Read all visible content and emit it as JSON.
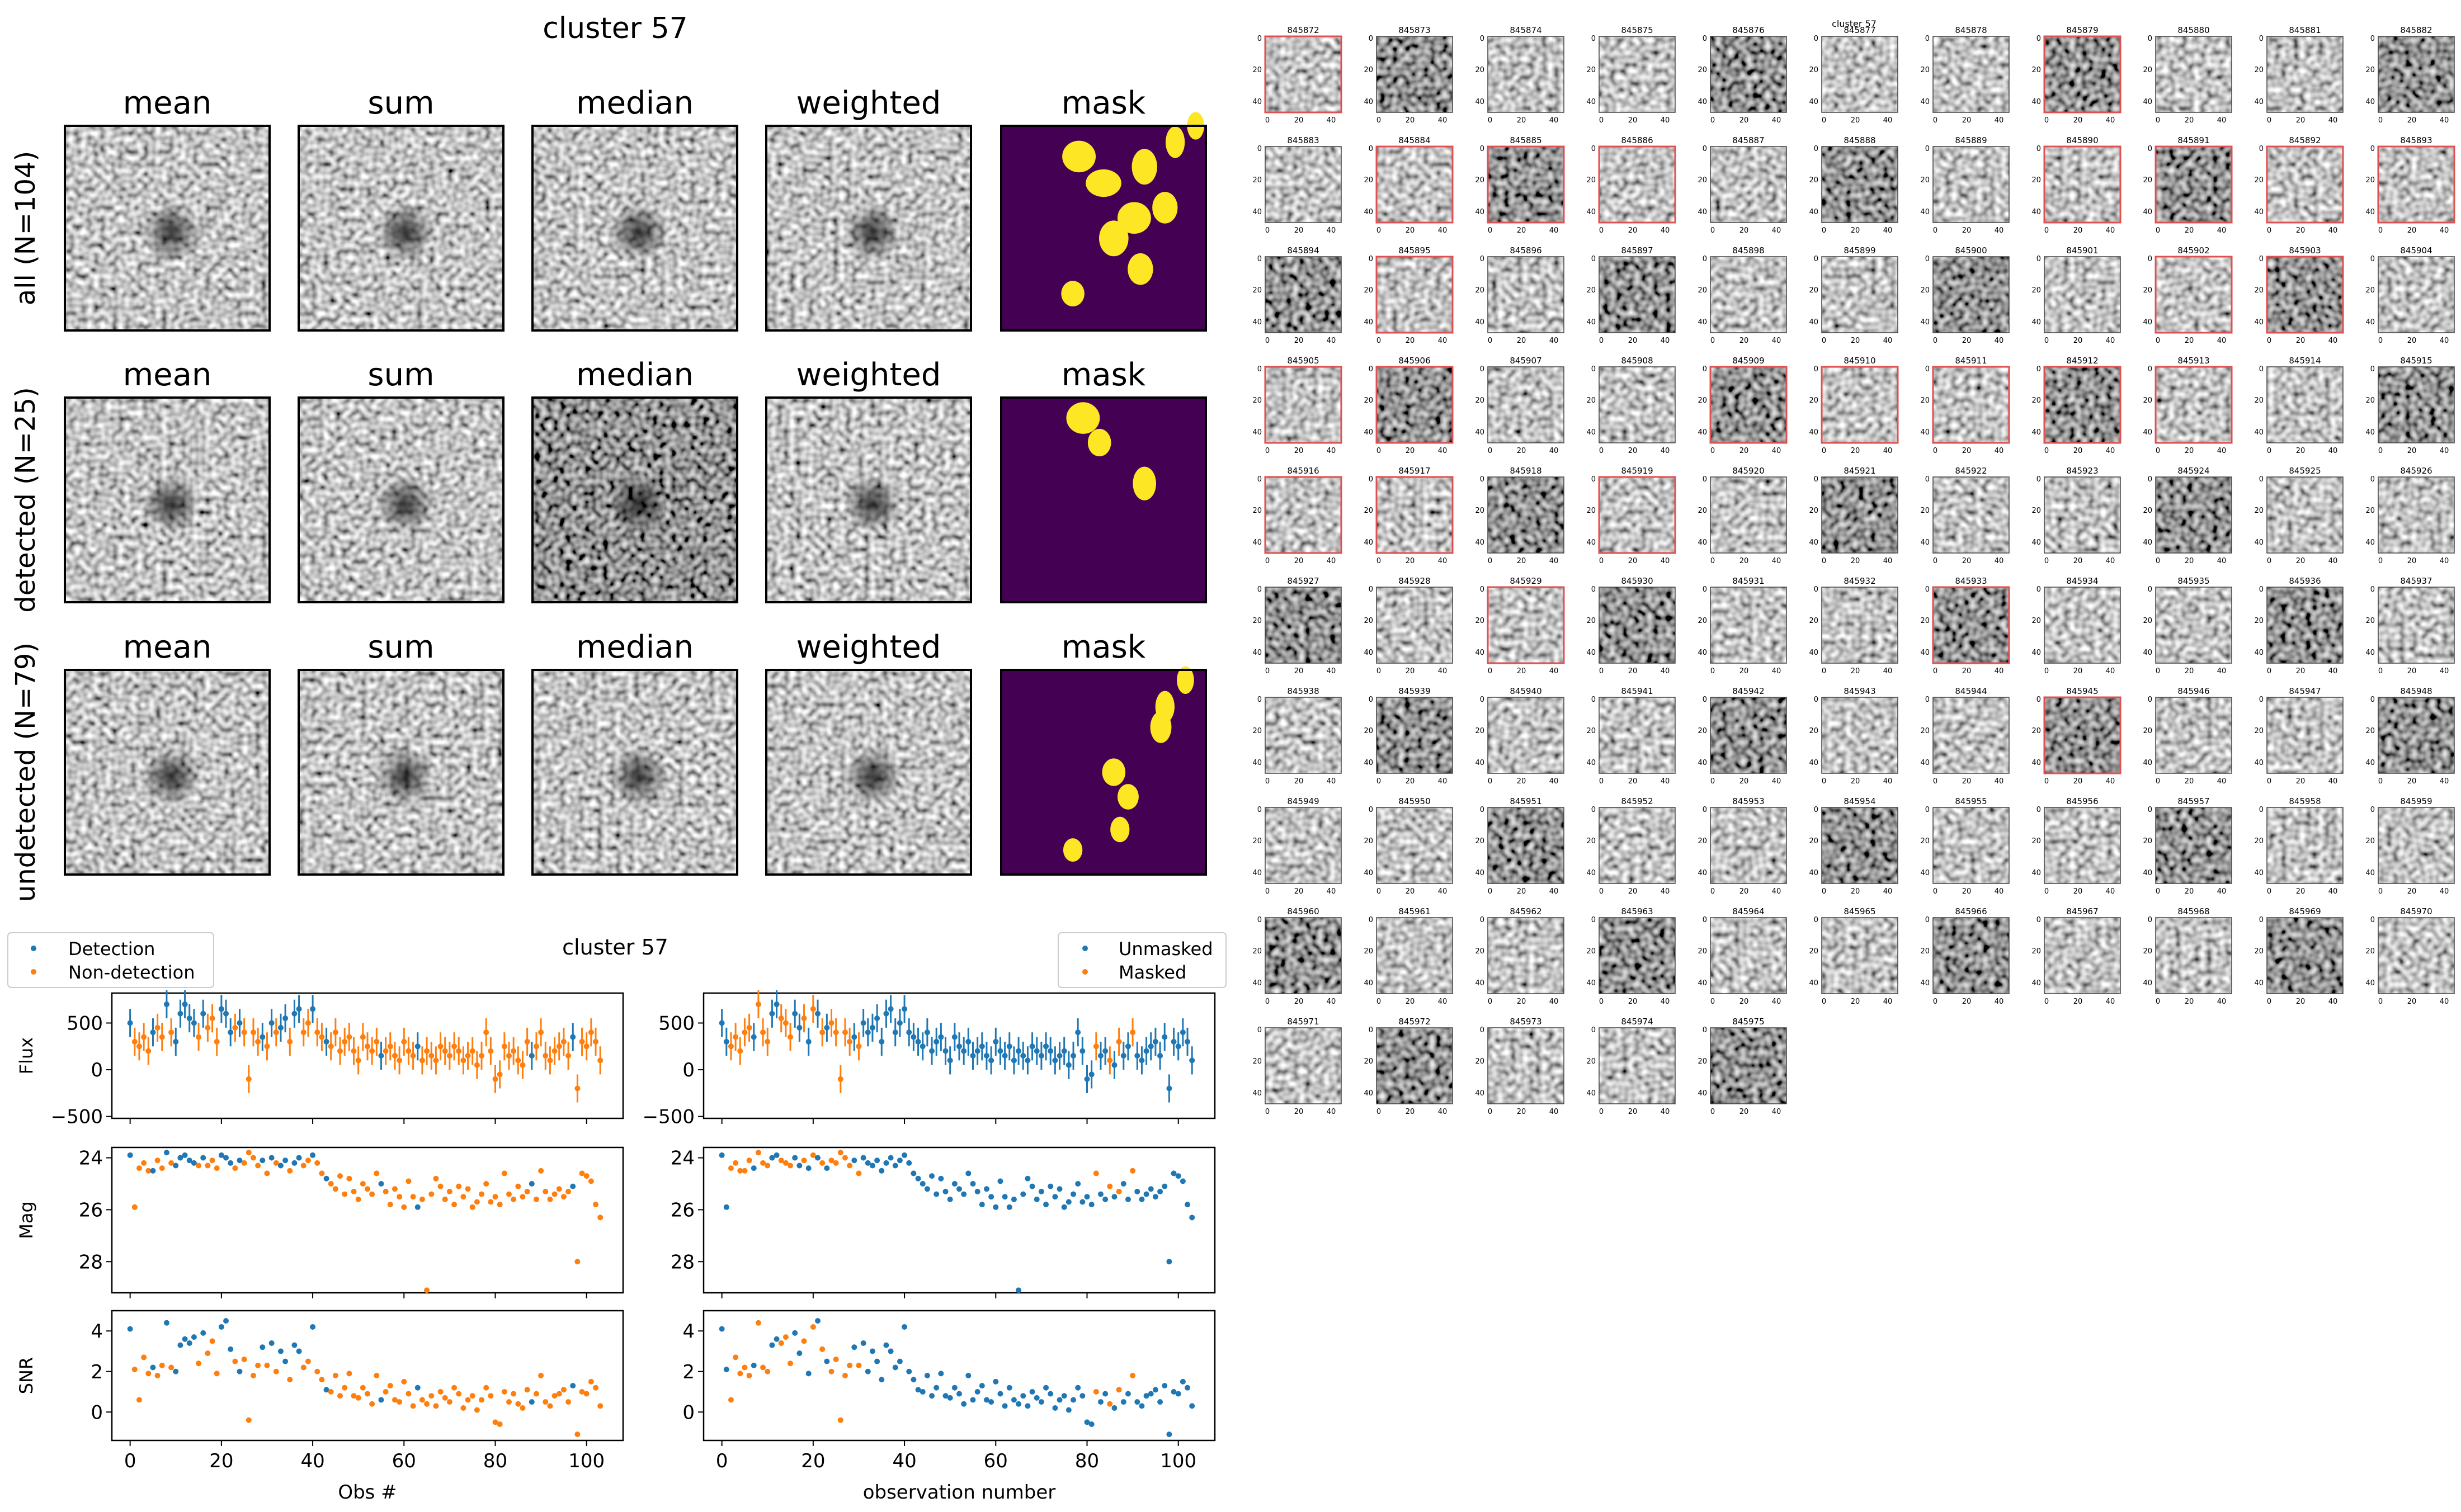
{
  "chart_data": [
    {
      "type": "heatmap",
      "title": "cluster 57",
      "columns": [
        "mean",
        "sum",
        "median",
        "weighted",
        "mask"
      ],
      "rows": [
        {
          "label": "all (N=104)",
          "mask_blobs": [
            [
              0.38,
              0.15,
              0.12,
              0.1
            ],
            [
              0.5,
              0.28,
              0.13,
              0.08
            ],
            [
              0.7,
              0.2,
              0.08,
              0.12
            ],
            [
              0.85,
              0.08,
              0.05,
              0.1
            ],
            [
              0.65,
              0.45,
              0.12,
              0.1
            ],
            [
              0.55,
              0.55,
              0.1,
              0.12
            ],
            [
              0.8,
              0.4,
              0.08,
              0.1
            ],
            [
              0.68,
              0.7,
              0.08,
              0.1
            ],
            [
              0.35,
              0.82,
              0.07,
              0.07
            ],
            [
              0.95,
              0.0,
              0.04,
              0.08
            ]
          ]
        },
        {
          "label": "detected (N=25)",
          "mask_blobs": [
            [
              0.4,
              0.1,
              0.12,
              0.1
            ],
            [
              0.48,
              0.22,
              0.07,
              0.08
            ],
            [
              0.7,
              0.42,
              0.07,
              0.11
            ]
          ]
        },
        {
          "label": "undetected (N=79)",
          "mask_blobs": [
            [
              0.8,
              0.18,
              0.05,
              0.1
            ],
            [
              0.78,
              0.28,
              0.06,
              0.1
            ],
            [
              0.55,
              0.5,
              0.07,
              0.08
            ],
            [
              0.62,
              0.62,
              0.06,
              0.07
            ],
            [
              0.58,
              0.78,
              0.05,
              0.07
            ],
            [
              0.35,
              0.88,
              0.05,
              0.06
            ],
            [
              0.9,
              0.05,
              0.04,
              0.08
            ]
          ]
        }
      ],
      "colors": {
        "mask_bg": "#440154",
        "mask_fg": "#fde725"
      }
    },
    {
      "type": "scatter",
      "title": "cluster 57",
      "left_legend": [
        "Detection",
        "Non-detection"
      ],
      "right_legend": [
        "Unmasked",
        "Masked"
      ],
      "panels": [
        {
          "ylabel": "Flux",
          "ylim": [
            -520,
            820
          ],
          "yticks": [
            "500",
            "0",
            "−500"
          ],
          "ytick_values": [
            500,
            0,
            -500
          ],
          "error_bars": true
        },
        {
          "ylabel": "Mag",
          "ylim": [
            29.2,
            23.6
          ],
          "yticks": [
            "24",
            "26",
            "28"
          ],
          "ytick_values": [
            24,
            26,
            28
          ],
          "error_bars": false
        },
        {
          "ylabel": "SNR",
          "ylim": [
            -1.4,
            5.0
          ],
          "yticks": [
            "4",
            "2",
            "0"
          ],
          "ytick_values": [
            4,
            2,
            0
          ],
          "error_bars": false
        }
      ],
      "xlim": [
        -4,
        108
      ],
      "xticks": [
        "0",
        "20",
        "40",
        "60",
        "80",
        "100"
      ],
      "xtick_values": [
        0,
        20,
        40,
        60,
        80,
        100
      ],
      "left_xlabel": "Obs #",
      "right_xlabel": "observation number",
      "colors": {
        "blue": "#1f77b4",
        "orange": "#ff7f0e"
      },
      "observations": {
        "flux": [
          500,
          300,
          250,
          350,
          200,
          400,
          450,
          350,
          700,
          400,
          300,
          600,
          700,
          550,
          500,
          350,
          600,
          450,
          550,
          300,
          650,
          600,
          400,
          450,
          500,
          400,
          -100,
          400,
          300,
          350,
          250,
          500,
          400,
          450,
          550,
          300,
          600,
          650,
          400,
          500,
          650,
          400,
          350,
          300,
          250,
          400,
          200,
          300,
          350,
          200,
          100,
          350,
          250,
          200,
          300,
          150,
          200,
          250,
          150,
          100,
          300,
          200,
          150,
          250,
          100,
          200,
          150,
          100,
          250,
          200,
          150,
          250,
          200,
          100,
          150,
          200,
          50,
          150,
          400,
          200,
          -100,
          -50,
          250,
          150,
          200,
          100,
          50,
          300,
          150,
          250,
          400,
          150,
          100,
          200,
          250,
          300,
          150,
          350,
          -200,
          300,
          250,
          400,
          300,
          100
        ],
        "flux_err": [
          150,
          150,
          150,
          150,
          150,
          150,
          150,
          150,
          150,
          150,
          150,
          150,
          150,
          150,
          150,
          150,
          150,
          150,
          150,
          150,
          150,
          150,
          150,
          150,
          150,
          150,
          150,
          150,
          150,
          150,
          150,
          150,
          150,
          150,
          150,
          150,
          150,
          150,
          150,
          150,
          150,
          150,
          150,
          150,
          150,
          150,
          150,
          150,
          150,
          150,
          150,
          150,
          150,
          150,
          150,
          150,
          150,
          150,
          150,
          150,
          150,
          150,
          150,
          150,
          150,
          150,
          150,
          150,
          150,
          150,
          150,
          150,
          150,
          150,
          150,
          150,
          150,
          150,
          150,
          150,
          150,
          150,
          150,
          150,
          150,
          150,
          150,
          150,
          150,
          150,
          150,
          150,
          150,
          150,
          150,
          150,
          150,
          150,
          150,
          150,
          150,
          150,
          150,
          150
        ],
        "mag": [
          23.9,
          25.9,
          24.4,
          24.2,
          24.5,
          24.5,
          24.1,
          24.4,
          23.8,
          24.2,
          24.3,
          24.0,
          23.9,
          24.1,
          24.2,
          24.3,
          24.0,
          24.3,
          24.1,
          24.4,
          23.9,
          24.0,
          24.2,
          24.4,
          24.1,
          24.2,
          23.8,
          24.0,
          24.3,
          24.1,
          24.6,
          24.0,
          24.2,
          24.3,
          24.1,
          24.5,
          24.2,
          24.0,
          24.3,
          24.1,
          23.9,
          24.2,
          24.6,
          24.8,
          25.0,
          25.2,
          24.7,
          25.4,
          24.8,
          25.3,
          25.6,
          25.0,
          25.2,
          25.4,
          24.6,
          25.0,
          25.3,
          25.8,
          25.2,
          25.5,
          25.9,
          24.9,
          25.5,
          25.9,
          25.6,
          29.1,
          25.4,
          24.8,
          25.1,
          25.6,
          25.3,
          25.8,
          25.1,
          25.5,
          25.2,
          25.9,
          25.7,
          25.4,
          25.0,
          25.7,
          25.5,
          25.8,
          24.6,
          25.4,
          25.6,
          25.1,
          25.5,
          25.3,
          25.0,
          25.6,
          24.5,
          25.3,
          25.6,
          25.4,
          25.2,
          25.5,
          25.3,
          25.1,
          28.0,
          24.6,
          24.7,
          24.9,
          25.8,
          26.3
        ],
        "snr": [
          4.1,
          2.1,
          0.6,
          2.7,
          1.9,
          2.2,
          1.8,
          2.3,
          4.4,
          2.2,
          2.0,
          3.3,
          3.6,
          3.4,
          3.7,
          2.4,
          3.9,
          2.9,
          3.5,
          1.9,
          4.2,
          4.5,
          3.1,
          2.5,
          2.0,
          2.6,
          -0.4,
          1.8,
          2.3,
          3.2,
          2.3,
          3.4,
          2.0,
          3.0,
          2.5,
          1.6,
          3.3,
          3.0,
          2.2,
          2.5,
          4.2,
          2.0,
          1.6,
          1.1,
          1.0,
          1.8,
          0.8,
          1.2,
          1.9,
          0.8,
          0.7,
          1.2,
          0.9,
          0.4,
          1.8,
          0.6,
          1.0,
          1.3,
          0.6,
          0.5,
          1.5,
          0.9,
          0.3,
          1.2,
          0.6,
          0.4,
          0.8,
          0.3,
          1.0,
          0.7,
          0.5,
          1.2,
          0.9,
          0.2,
          0.6,
          0.8,
          0.1,
          0.6,
          1.2,
          0.8,
          -0.5,
          -0.6,
          1.0,
          0.5,
          0.9,
          0.4,
          0.2,
          1.1,
          0.5,
          0.9,
          1.8,
          0.5,
          0.3,
          0.8,
          0.9,
          1.1,
          0.5,
          1.3,
          -1.1,
          1.0,
          0.9,
          1.5,
          1.2,
          0.3
        ],
        "detected_idx": [
          0,
          5,
          8,
          10,
          11,
          12,
          13,
          14,
          16,
          20,
          21,
          22,
          24,
          29,
          31,
          33,
          34,
          36,
          37,
          40,
          43,
          55,
          63,
          88,
          97
        ],
        "masked_idx": [
          2,
          3,
          4,
          5,
          6,
          8,
          9,
          10,
          13,
          14,
          15,
          18,
          20,
          22,
          24,
          25,
          26,
          27,
          28,
          30,
          82,
          85,
          87,
          90
        ]
      }
    },
    {
      "type": "heatmap",
      "title": "cluster 57",
      "columns_per_row": 11,
      "frame_ids": [
        "845872",
        "845873",
        "845874",
        "845875",
        "845876",
        "845877",
        "845878",
        "845879",
        "845880",
        "845881",
        "845882",
        "845883",
        "845884",
        "845885",
        "845886",
        "845887",
        "845888",
        "845889",
        "845890",
        "845891",
        "845892",
        "845893",
        "845894",
        "845895",
        "845896",
        "845897",
        "845898",
        "845899",
        "845900",
        "845901",
        "845902",
        "845903",
        "845904",
        "845905",
        "845906",
        "845907",
        "845908",
        "845909",
        "845910",
        "845911",
        "845912",
        "845913",
        "845914",
        "845915",
        "845916",
        "845917",
        "845918",
        "845919",
        "845920",
        "845921",
        "845922",
        "845923",
        "845924",
        "845925",
        "845926",
        "845927",
        "845928",
        "845929",
        "845930",
        "845931",
        "845932",
        "845933",
        "845934",
        "845935",
        "845936",
        "845937",
        "845938",
        "845939",
        "845940",
        "845941",
        "845942",
        "845943",
        "845944",
        "845945",
        "845946",
        "845947",
        "845948",
        "845949",
        "845950",
        "845951",
        "845952",
        "845953",
        "845954",
        "845955",
        "845956",
        "845957",
        "845958",
        "845959",
        "845960",
        "845961",
        "845962",
        "845963",
        "845964",
        "845965",
        "845966",
        "845967",
        "845968",
        "845969",
        "845970",
        "845971",
        "845972",
        "845973",
        "845974",
        "845975"
      ],
      "highlighted_frames": [
        "845872",
        "845879",
        "845884",
        "845885",
        "845886",
        "845890",
        "845891",
        "845892",
        "845893",
        "845895",
        "845902",
        "845903",
        "845905",
        "845906",
        "845909",
        "845910",
        "845911",
        "845912",
        "845913",
        "845916",
        "845917",
        "845919",
        "845929",
        "845933",
        "845945"
      ],
      "axis_ticks": {
        "x": [
          "0",
          "20",
          "40"
        ],
        "y": [
          "0",
          "20",
          "40"
        ]
      },
      "colors": {
        "highlight": "#e05050"
      }
    }
  ]
}
